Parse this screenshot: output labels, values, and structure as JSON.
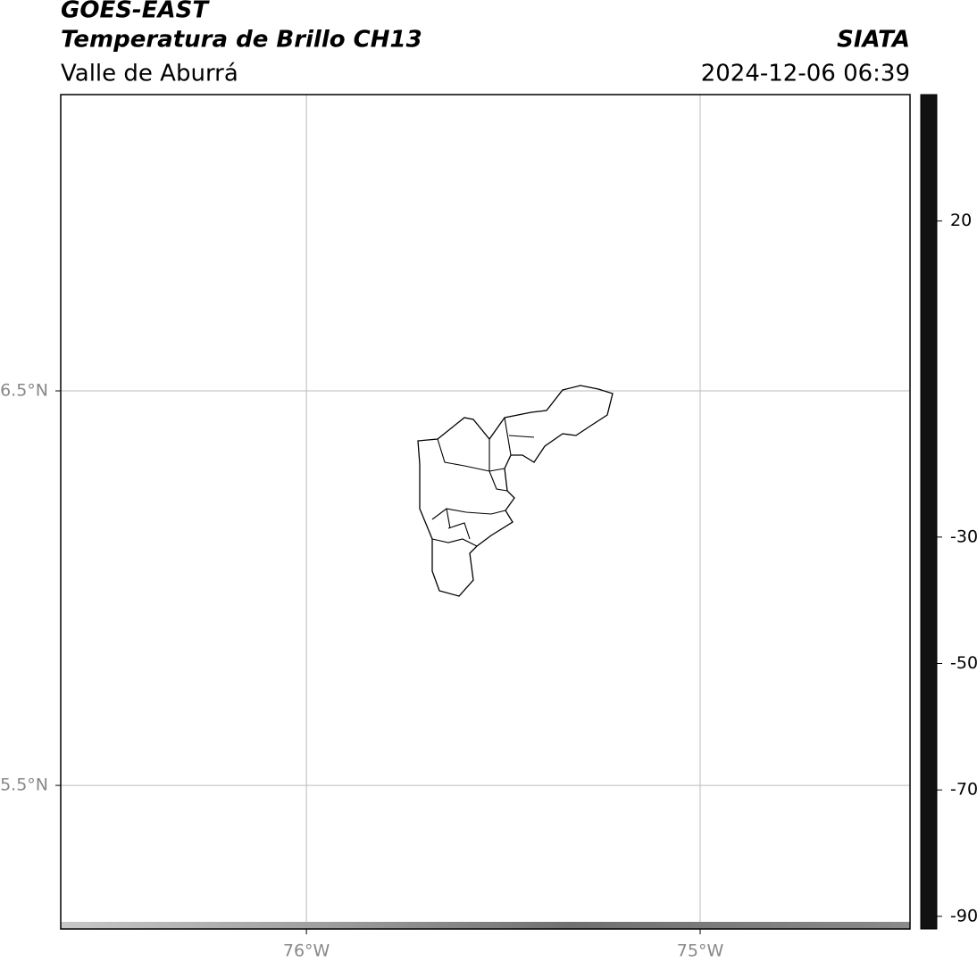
{
  "header": {
    "title": "GOES-EAST",
    "subtitle": "Temperatura de Brillo CH13",
    "region": "Valle de Aburrá",
    "agency": "SIATA",
    "timestamp": "2024-12-06 06:39"
  },
  "map": {
    "xlim": [
      -76.624,
      -74.467
    ],
    "ylim": [
      5.136,
      7.251
    ],
    "xticks": [
      {
        "value": -76,
        "label": "76°W"
      },
      {
        "value": -75,
        "label": "75°W"
      }
    ],
    "yticks": [
      {
        "value": 6.5,
        "label": "6.5°N"
      },
      {
        "value": 5.5,
        "label": "5.5°N"
      }
    ],
    "grid": true
  },
  "colorbar": {
    "clim": [
      -92,
      40
    ],
    "ticks": [
      20,
      -30,
      -50,
      -70,
      -90
    ],
    "colormap": [
      [
        40,
        "#111111"
      ],
      [
        20,
        "#808080"
      ],
      [
        0,
        "#c8c8c8"
      ],
      [
        -19,
        "#f5f5f5"
      ],
      [
        -19.1,
        "#00e5ee"
      ],
      [
        -25,
        "#1070c0"
      ],
      [
        -30,
        "#00208a"
      ],
      [
        -32,
        "#006030"
      ],
      [
        -37,
        "#00d000"
      ],
      [
        -43,
        "#90e000"
      ],
      [
        -50,
        "#ffe000"
      ],
      [
        -53,
        "#ff9000"
      ],
      [
        -58,
        "#ff2000"
      ],
      [
        -62,
        "#c00000"
      ],
      [
        -66,
        "#500000"
      ],
      [
        -68,
        "#000000"
      ],
      [
        -70,
        "#303030"
      ],
      [
        -74,
        "#808080"
      ],
      [
        -79,
        "#d0d0d0"
      ],
      [
        -80,
        "#f0f0f0"
      ],
      [
        -80.5,
        "#e860c0"
      ],
      [
        -86,
        "#b03090"
      ],
      [
        -90,
        "#801090"
      ],
      [
        -90.5,
        "#ffffff"
      ],
      [
        -92,
        "#ffffff"
      ]
    ]
  }
}
